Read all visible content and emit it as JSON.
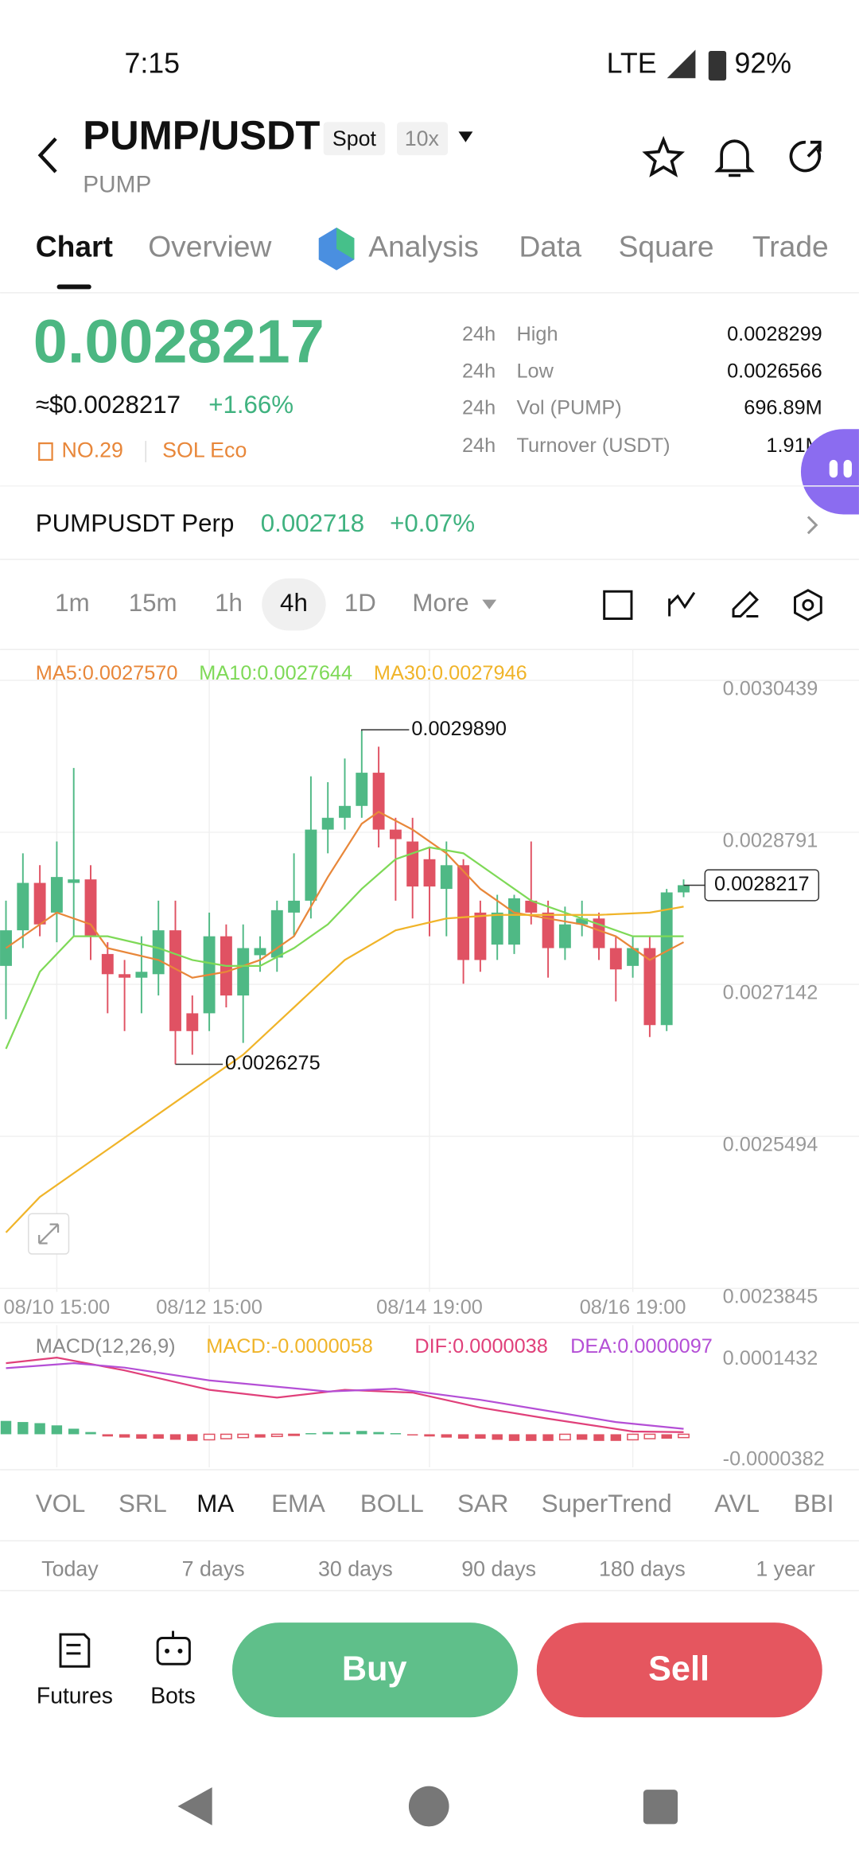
{
  "status_bar": {
    "time": "7:15",
    "network": "LTE",
    "battery": "92%"
  },
  "header": {
    "pair": "PUMP/USDT",
    "market": "Spot",
    "leverage": "10x",
    "base": "PUMP"
  },
  "tabs": [
    "Chart",
    "Overview",
    "Analysis",
    "Data",
    "Square",
    "Trade"
  ],
  "ticker": {
    "price": "0.0028217",
    "usd_price": "≈$0.0028217",
    "change": "+1.66%",
    "rank": "NO.29",
    "tag": "SOL Eco",
    "stats": [
      {
        "period": "24h",
        "label": "High",
        "value": "0.0028299"
      },
      {
        "period": "24h",
        "label": "Low",
        "value": "0.0026566"
      },
      {
        "period": "24h",
        "label": "Vol (PUMP)",
        "value": "696.89M"
      },
      {
        "period": "24h",
        "label": "Turnover (USDT)",
        "value": "1.91M"
      }
    ]
  },
  "perp": {
    "name": "PUMPUSDT Perp",
    "price": "0.002718",
    "change": "+0.07%"
  },
  "intervals": [
    "1m",
    "15m",
    "1h",
    "4h",
    "1D",
    "More"
  ],
  "chart_data": {
    "type": "candlestick",
    "up_color": "#4fb985",
    "down_color": "#e05263",
    "categories": [
      null,
      null,
      null,
      "08/10 15:00",
      null,
      null,
      null,
      null,
      null,
      null,
      null,
      null,
      "08/12 15:00",
      null,
      null,
      null,
      null,
      null,
      null,
      null,
      null,
      null,
      null,
      null,
      null,
      "08/14 19:00",
      null,
      null,
      null,
      null,
      null,
      null,
      null,
      null,
      null,
      null,
      null,
      "08/16 19:00",
      null,
      null,
      null
    ],
    "candles": {
      "open": [
        0.0027342,
        0.0027728,
        0.0028242,
        0.002792,
        0.0028242,
        0.002828,
        0.0027471,
        0.0027252,
        0.0027214,
        0.0027252,
        0.0027728,
        0.0026828,
        0.0026828,
        0.0027663,
        0.0027021,
        0.0027458,
        0.0027432,
        0.002792,
        0.0028049,
        0.002882,
        0.0028948,
        0.0029077,
        0.0029437,
        0.002882,
        0.0028691,
        0.0028499,
        0.0028177,
        0.0028434,
        0.002792,
        0.0027573,
        0.0027573,
        0.0028049,
        0.002792,
        0.0027535,
        0.0027792,
        0.0027856,
        0.0027535,
        0.0027342,
        0.0027535,
        0.00267,
        0.0028139
      ],
      "high": [
        0.0028049,
        0.0028563,
        0.0028434,
        0.0028691,
        0.0029488,
        0.0028434,
        0.0027599,
        0.0027406,
        0.0027663,
        0.0028049,
        0.0028049,
        0.0027021,
        0.002792,
        0.0027792,
        0.0027792,
        0.0027663,
        0.0028049,
        0.0028563,
        0.0029398,
        0.0029334,
        0.0029591,
        0.002989,
        0.0029719,
        0.0028948,
        0.0028948,
        0.0028627,
        0.0028691,
        0.0028499,
        0.0028049,
        0.0028113,
        0.0028113,
        0.0028691,
        0.0028049,
        0.0027985,
        0.0028049,
        0.002792,
        0.0027663,
        0.0027663,
        0.0027663,
        0.0028177,
        0.002828
      ],
      "low": [
        0.0026764,
        0.0027535,
        0.0027663,
        0.0027599,
        0.0027663,
        0.0027406,
        0.0026828,
        0.0026635,
        0.0026828,
        0.0027021,
        0.0026275,
        0.0026378,
        0.0026635,
        0.0026892,
        0.0026507,
        0.0027278,
        0.0027278,
        0.0027663,
        0.0027856,
        0.0028563,
        0.002882,
        0.0028948,
        0.0028627,
        0.0028049,
        0.0027856,
        0.0027663,
        0.0027663,
        0.0027149,
        0.0027278,
        0.0027406,
        0.0027471,
        0.0027792,
        0.0027214,
        0.0027406,
        0.0027663,
        0.0027406,
        0.0026957,
        0.0027214,
        0.0026571,
        0.0026635,
        0.0028087
      ],
      "close": [
        0.0027728,
        0.0028242,
        0.0027792,
        0.0028306,
        0.002828,
        0.0027663,
        0.0027252,
        0.0027214,
        0.0027278,
        0.0027728,
        0.0026635,
        0.0026635,
        0.0027663,
        0.0027021,
        0.0027535,
        0.0027535,
        0.0027946,
        0.0028049,
        0.002882,
        0.0028948,
        0.0029077,
        0.0029437,
        0.002882,
        0.0028717,
        0.0028203,
        0.0028203,
        0.0028434,
        0.0027406,
        0.0027406,
        0.002792,
        0.0028075,
        0.002792,
        0.0027535,
        0.0027792,
        0.0027856,
        0.0027535,
        0.0027304,
        0.0027535,
        0.00267,
        0.0028139,
        0.0028217
      ]
    },
    "series": [
      {
        "name": "MA5:0.0027570",
        "color": "#e8873a",
        "x": [
          0,
          3,
          5,
          6,
          9,
          11,
          13,
          15,
          17,
          19,
          21,
          22,
          24,
          26,
          28,
          30,
          32,
          34,
          36,
          38,
          40
        ],
        "values": [
          0.0027535,
          0.002792,
          0.0027792,
          0.0027535,
          0.0027406,
          0.0027214,
          0.0027278,
          0.0027406,
          0.0027663,
          0.0028306,
          0.0028884,
          0.0029013,
          0.002882,
          0.0028563,
          0.0028177,
          0.002792,
          0.0027856,
          0.0027792,
          0.0027663,
          0.0027406,
          0.0027599
        ]
      },
      {
        "name": "MA10:0.0027644",
        "color": "#7ed957",
        "x": [
          0,
          2,
          4,
          6,
          9,
          11,
          13,
          15,
          17,
          19,
          21,
          23,
          25,
          27,
          29,
          31,
          33,
          35,
          37,
          39,
          40
        ],
        "values": [
          0.0026443,
          0.0027278,
          0.0027663,
          0.0027663,
          0.0027535,
          0.0027406,
          0.0027342,
          0.0027342,
          0.0027535,
          0.0027792,
          0.0028177,
          0.0028499,
          0.0028627,
          0.0028563,
          0.0028306,
          0.0028049,
          0.002792,
          0.0027792,
          0.0027663,
          0.0027663,
          0.0027663
        ]
      },
      {
        "name": "MA30:0.0027946",
        "color": "#f0b429",
        "x": [
          0,
          2,
          5,
          8,
          11,
          14,
          17,
          20,
          23,
          26,
          29,
          32,
          35,
          38,
          40
        ],
        "values": [
          0.0024451,
          0.0024836,
          0.0025222,
          0.0025607,
          0.0025993,
          0.0026378,
          0.0026892,
          0.0027406,
          0.0027728,
          0.0027856,
          0.0027895,
          0.0027895,
          0.0027895,
          0.002792,
          0.0027985
        ]
      }
    ],
    "ylim": [
      0.0023845,
      0.0030439
    ],
    "yticks": [
      0.0030439,
      0.0028791,
      0.0027142,
      0.0025494,
      0.0023845
    ],
    "grid": true,
    "high_label": "0.0029890",
    "low_label": "0.0026275",
    "last_label": "0.0028217",
    "macd": {
      "title": "MACD(12,26,9)",
      "ylim": [
        -3.82e-05,
        0.0001432
      ],
      "yticks": [
        0.0001432,
        -3.82e-05
      ],
      "histogram": {
        "name": "MACD:-0.0000058",
        "color": "#f0b429",
        "values": [
          2.4e-05,
          2.2e-05,
          2e-05,
          1.6e-05,
          1e-05,
          4e-06,
          -4e-06,
          -6e-06,
          -8e-06,
          -8e-06,
          -1e-05,
          -1.2e-05,
          -1e-05,
          -8e-06,
          -6e-06,
          -6e-06,
          -4e-06,
          -2e-06,
          2e-06,
          4e-06,
          4e-06,
          6e-06,
          4e-06,
          2e-06,
          -2e-06,
          -4e-06,
          -6e-06,
          -8e-06,
          -8e-06,
          -1e-05,
          -1.2e-05,
          -1.2e-05,
          -1.2e-05,
          -1e-05,
          -1e-05,
          -1.2e-05,
          -1.2e-05,
          -1e-05,
          -8e-06,
          -8e-06,
          -6e-06
        ]
      },
      "series": [
        {
          "name": "DIF:0.0000038",
          "color": "#e0407a",
          "x": [
            0,
            3,
            7,
            12,
            16,
            20,
            24,
            28,
            32,
            37,
            40
          ],
          "values": [
            0.000128,
            0.000138,
            0.000115,
            8e-05,
            6.6e-05,
            8e-05,
            7.5e-05,
            4.8e-05,
            2.8e-05,
            5e-06,
            3.8e-06
          ]
        },
        {
          "name": "DEA:0.0000097",
          "color": "#b44fd6",
          "x": [
            0,
            4,
            7,
            12,
            19,
            23,
            28,
            32,
            36,
            40
          ],
          "values": [
            0.000119,
            0.000128,
            0.00012,
            9.7e-05,
            7.7e-05,
            8.2e-05,
            6.2e-05,
            4.2e-05,
            2.2e-05,
            9.7e-06
          ]
        }
      ]
    }
  },
  "indicators": [
    "VOL",
    "SRL",
    "MA",
    "EMA",
    "BOLL",
    "SAR",
    "SuperTrend",
    "AVL",
    "BBI"
  ],
  "periods": [
    "Today",
    "7 days",
    "30 days",
    "90 days",
    "180 days",
    "1 year"
  ],
  "bottom_bar": {
    "futures": "Futures",
    "bots": "Bots",
    "buy": "Buy",
    "sell": "Sell"
  }
}
